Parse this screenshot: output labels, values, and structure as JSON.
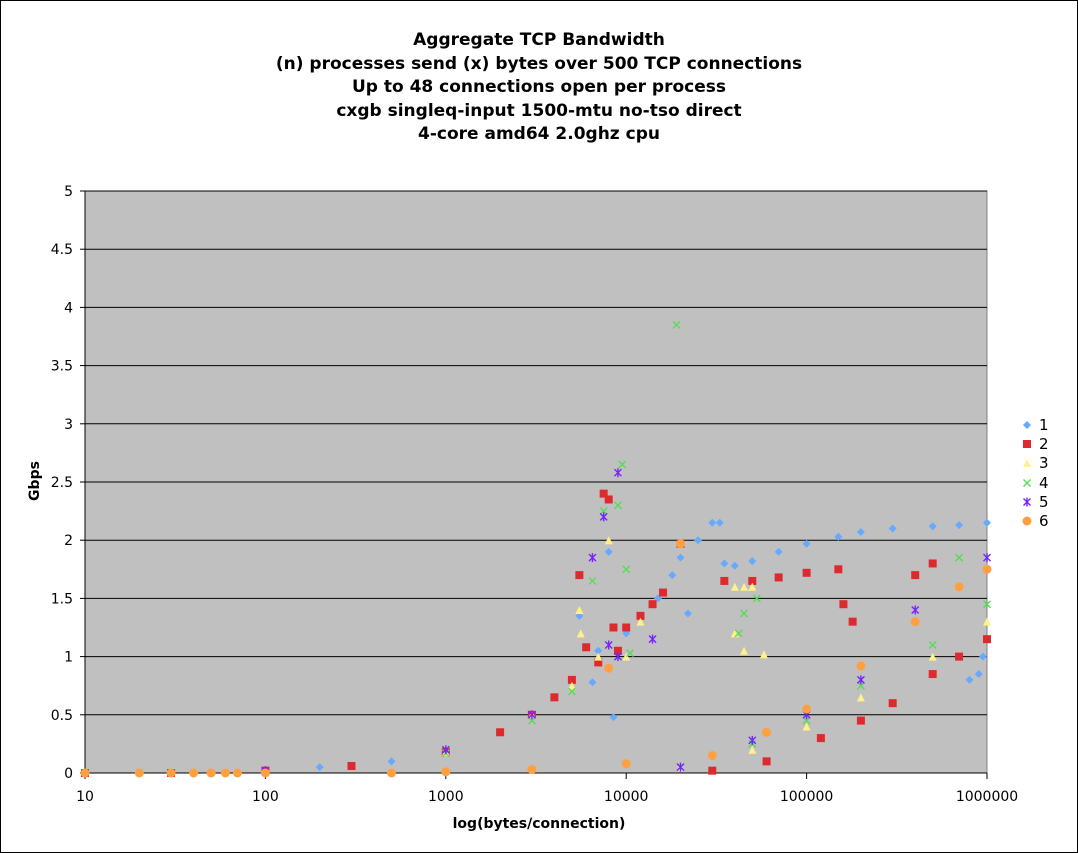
{
  "chart_data": {
    "type": "scatter",
    "title_lines": [
      "Aggregate TCP Bandwidth",
      "(n) processes send (x) bytes over 500 TCP connections",
      "Up to 48 connections open per process",
      "cxgb singleq-input 1500-mtu no-tso direct",
      "4-core amd64 2.0ghz cpu"
    ],
    "xlabel": "log(bytes/connection)",
    "ylabel": "Gbps",
    "xscale": "log",
    "xlim": [
      10,
      1000000
    ],
    "ylim": [
      0,
      5
    ],
    "xticks": [
      "10",
      "100",
      "1000",
      "10000",
      "100000",
      "1000000"
    ],
    "yticks": [
      "0",
      "0.5",
      "1",
      "1.5",
      "2",
      "2.5",
      "3",
      "3.5",
      "4",
      "4.5",
      "5"
    ],
    "grid": true,
    "legend_position": "right",
    "series": [
      {
        "name": "1",
        "color": "#66aaff",
        "marker": "diamond",
        "points": [
          [
            10,
            0
          ],
          [
            20,
            0
          ],
          [
            50,
            0
          ],
          [
            100,
            0.02
          ],
          [
            200,
            0.05
          ],
          [
            500,
            0.1
          ],
          [
            1000,
            0.18
          ],
          [
            2000,
            0.35
          ],
          [
            3000,
            0.5
          ],
          [
            5000,
            0.8
          ],
          [
            5500,
            1.35
          ],
          [
            6500,
            0.78
          ],
          [
            7000,
            1.05
          ],
          [
            8000,
            1.9
          ],
          [
            8500,
            0.48
          ],
          [
            10000,
            1.2
          ],
          [
            12000,
            1.35
          ],
          [
            15000,
            1.5
          ],
          [
            18000,
            1.7
          ],
          [
            20000,
            1.85
          ],
          [
            22000,
            1.37
          ],
          [
            25000,
            2.0
          ],
          [
            30000,
            2.15
          ],
          [
            33000,
            2.15
          ],
          [
            35000,
            1.8
          ],
          [
            40000,
            1.78
          ],
          [
            50000,
            1.82
          ],
          [
            70000,
            1.9
          ],
          [
            100000,
            1.97
          ],
          [
            150000,
            2.03
          ],
          [
            200000,
            2.07
          ],
          [
            300000,
            2.1
          ],
          [
            500000,
            2.12
          ],
          [
            700000,
            2.13
          ],
          [
            1000000,
            2.15
          ],
          [
            800000,
            0.8
          ],
          [
            900000,
            0.85
          ],
          [
            950000,
            1.0
          ]
        ]
      },
      {
        "name": "2",
        "color": "#dd2a2f",
        "marker": "square",
        "points": [
          [
            10,
            0
          ],
          [
            30,
            0
          ],
          [
            100,
            0.02
          ],
          [
            300,
            0.06
          ],
          [
            1000,
            0.18
          ],
          [
            2000,
            0.35
          ],
          [
            3000,
            0.5
          ],
          [
            4000,
            0.65
          ],
          [
            5000,
            0.8
          ],
          [
            5500,
            1.7
          ],
          [
            6000,
            1.08
          ],
          [
            7000,
            0.95
          ],
          [
            7500,
            2.4
          ],
          [
            8000,
            2.35
          ],
          [
            8500,
            1.25
          ],
          [
            9000,
            1.05
          ],
          [
            10000,
            1.25
          ],
          [
            12000,
            1.35
          ],
          [
            14000,
            1.45
          ],
          [
            16000,
            1.55
          ],
          [
            20000,
            1.97
          ],
          [
            35000,
            1.65
          ],
          [
            50000,
            1.65
          ],
          [
            70000,
            1.68
          ],
          [
            100000,
            1.72
          ],
          [
            150000,
            1.75
          ],
          [
            160000,
            1.45
          ],
          [
            180000,
            1.3
          ],
          [
            30000,
            0.02
          ],
          [
            60000,
            0.1
          ],
          [
            120000,
            0.3
          ],
          [
            200000,
            0.45
          ],
          [
            300000,
            0.6
          ],
          [
            500000,
            0.85
          ],
          [
            700000,
            1.0
          ],
          [
            1000000,
            1.15
          ],
          [
            400000,
            1.7
          ],
          [
            500000,
            1.8
          ]
        ]
      },
      {
        "name": "3",
        "color": "#fff08a",
        "marker": "triangle",
        "points": [
          [
            1000,
            0.18
          ],
          [
            3000,
            0.5
          ],
          [
            5000,
            0.75
          ],
          [
            5500,
            1.4
          ],
          [
            5600,
            1.2
          ],
          [
            7000,
            1.0
          ],
          [
            8000,
            2.0
          ],
          [
            10000,
            1.0
          ],
          [
            12000,
            1.3
          ],
          [
            40000,
            1.6
          ],
          [
            45000,
            1.6
          ],
          [
            50000,
            1.6
          ],
          [
            40000,
            1.2
          ],
          [
            45000,
            1.05
          ],
          [
            58000,
            1.02
          ],
          [
            20000,
            0.05
          ],
          [
            50000,
            0.2
          ],
          [
            100000,
            0.4
          ],
          [
            200000,
            0.65
          ],
          [
            500000,
            1.0
          ],
          [
            1000000,
            1.3
          ]
        ]
      },
      {
        "name": "4",
        "color": "#55dd55",
        "marker": "x",
        "points": [
          [
            1000,
            0.17
          ],
          [
            3000,
            0.45
          ],
          [
            5000,
            0.7
          ],
          [
            6500,
            1.65
          ],
          [
            7500,
            2.25
          ],
          [
            9000,
            2.3
          ],
          [
            9500,
            2.65
          ],
          [
            10000,
            1.75
          ],
          [
            10500,
            1.03
          ],
          [
            19000,
            3.85
          ],
          [
            42000,
            1.2
          ],
          [
            45000,
            1.37
          ],
          [
            53000,
            1.5
          ],
          [
            20000,
            0.05
          ],
          [
            50000,
            0.25
          ],
          [
            100000,
            0.45
          ],
          [
            200000,
            0.75
          ],
          [
            500000,
            1.1
          ],
          [
            1000000,
            1.45
          ],
          [
            700000,
            1.85
          ]
        ]
      },
      {
        "name": "5",
        "color": "#7722ff",
        "marker": "asterisk",
        "points": [
          [
            100,
            0.02
          ],
          [
            1000,
            0.2
          ],
          [
            3000,
            0.5
          ],
          [
            6500,
            1.85
          ],
          [
            7500,
            2.2
          ],
          [
            9000,
            2.58
          ],
          [
            8000,
            1.1
          ],
          [
            9000,
            1.0
          ],
          [
            14000,
            1.15
          ],
          [
            20000,
            0.05
          ],
          [
            50000,
            0.28
          ],
          [
            100000,
            0.5
          ],
          [
            200000,
            0.8
          ],
          [
            400000,
            1.4
          ],
          [
            1000000,
            1.85
          ]
        ]
      },
      {
        "name": "6",
        "color": "#ffa040",
        "marker": "circle",
        "points": [
          [
            10,
            0
          ],
          [
            20,
            0
          ],
          [
            30,
            0
          ],
          [
            40,
            0
          ],
          [
            50,
            0
          ],
          [
            60,
            0
          ],
          [
            70,
            0
          ],
          [
            100,
            0
          ],
          [
            500,
            0
          ],
          [
            1000,
            0.01
          ],
          [
            3000,
            0.03
          ],
          [
            10000,
            0.08
          ],
          [
            20000,
            1.97
          ],
          [
            8000,
            0.9
          ],
          [
            30000,
            0.15
          ],
          [
            60000,
            0.35
          ],
          [
            100000,
            0.55
          ],
          [
            200000,
            0.92
          ],
          [
            400000,
            1.3
          ],
          [
            700000,
            1.6
          ],
          [
            1000000,
            1.75
          ]
        ]
      }
    ]
  }
}
